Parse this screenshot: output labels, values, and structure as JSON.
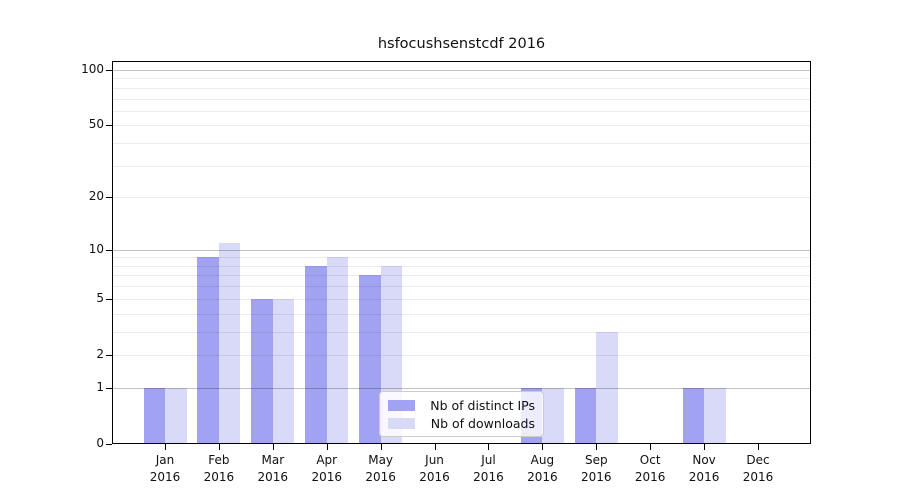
{
  "title": "hsfocushsenstcdf 2016",
  "chart_data": {
    "type": "bar",
    "title": "hsfocushsenstcdf 2016",
    "categories": [
      "Jan",
      "Feb",
      "Mar",
      "Apr",
      "May",
      "Jun",
      "Jul",
      "Aug",
      "Sep",
      "Oct",
      "Nov",
      "Dec"
    ],
    "category_year": "2016",
    "series": [
      {
        "name": "Nb of distinct IPs",
        "color": "#a2a2f2",
        "values": [
          1,
          9,
          5,
          8,
          7,
          0,
          0,
          1,
          1,
          0,
          1,
          0
        ]
      },
      {
        "name": "Nb of downloads",
        "color": "#d9d9f8",
        "values": [
          1,
          11,
          5,
          9,
          8,
          0,
          0,
          1,
          3,
          0,
          1,
          0
        ]
      }
    ],
    "yscale": "log(1+y)",
    "ylim": [
      0,
      112
    ],
    "yticks": [
      0,
      1,
      2,
      5,
      10,
      20,
      50,
      100
    ],
    "minor_yticks": [
      2,
      3,
      4,
      5,
      6,
      7,
      8,
      9,
      20,
      30,
      40,
      50,
      60,
      70,
      80,
      90
    ],
    "grid": true,
    "legend_position": "inside-bottom-center"
  },
  "colors": {
    "spine": "#000000",
    "major_grid": "#c4c4c4",
    "minor_grid": "#ebebeb",
    "background": "#ffffff"
  }
}
